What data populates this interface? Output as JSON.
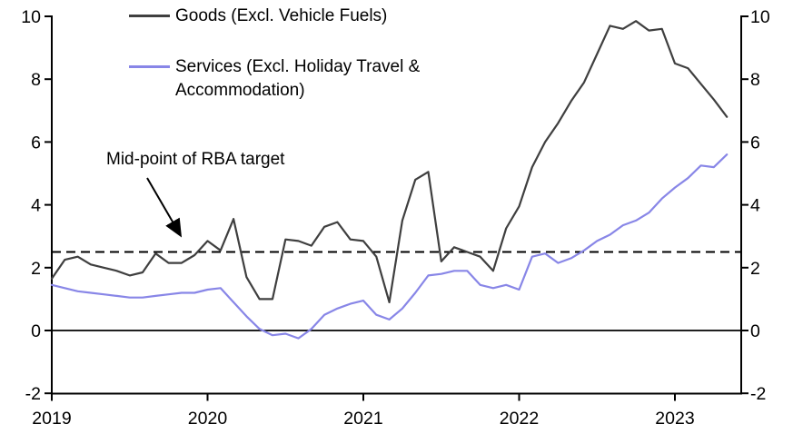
{
  "chart_data": {
    "type": "line",
    "title": "",
    "xlabel": "",
    "ylabel": "",
    "x_unit": "month",
    "x_start": "2019-01",
    "x_end": "2023-05",
    "x_tick_labels": [
      "2019",
      "2020",
      "2021",
      "2022",
      "2023"
    ],
    "x_tick_month_index": [
      0,
      12,
      24,
      36,
      48
    ],
    "y_ticks": [
      -2,
      0,
      2,
      4,
      6,
      8,
      10
    ],
    "ylim": [
      -2,
      10
    ],
    "y_axis_sides": "both",
    "grid": false,
    "background_color": "#ffffff",
    "axis_color": "#000000",
    "zero_line": {
      "value": 0,
      "color": "#000000",
      "style": "solid"
    },
    "target_line": {
      "value": 2.5,
      "color": "#000000",
      "style": "dashed"
    },
    "annotation": {
      "text": "Mid-point of RBA target",
      "points_to_value": 2.5
    },
    "legend_position": "top-left-inside",
    "series": [
      {
        "name": "Goods (Excl. Vehicle Fuels)",
        "color": "#3f3f3f",
        "values": [
          1.65,
          2.25,
          2.35,
          2.1,
          2.0,
          1.9,
          1.75,
          1.85,
          2.45,
          2.15,
          2.15,
          2.4,
          2.85,
          2.55,
          3.55,
          1.7,
          1.0,
          1.0,
          2.9,
          2.85,
          2.7,
          3.3,
          3.45,
          2.9,
          2.85,
          2.35,
          0.9,
          3.5,
          4.8,
          5.05,
          2.2,
          2.65,
          2.5,
          2.35,
          1.9,
          3.25,
          3.95,
          5.2,
          6.0,
          6.6,
          7.3,
          7.9,
          8.8,
          9.7,
          9.6,
          9.85,
          9.55,
          9.6,
          8.5,
          8.35,
          7.85,
          7.35,
          6.8
        ]
      },
      {
        "name": "Services (Excl. Holiday Travel & Accommodation)",
        "color": "#8886e7",
        "values": [
          1.45,
          1.35,
          1.25,
          1.2,
          1.15,
          1.1,
          1.05,
          1.05,
          1.1,
          1.15,
          1.2,
          1.2,
          1.3,
          1.35,
          0.9,
          0.45,
          0.05,
          -0.15,
          -0.1,
          -0.25,
          0.05,
          0.5,
          0.7,
          0.85,
          0.95,
          0.5,
          0.35,
          0.7,
          1.2,
          1.75,
          1.8,
          1.9,
          1.9,
          1.45,
          1.35,
          1.45,
          1.3,
          2.35,
          2.45,
          2.15,
          2.3,
          2.55,
          2.85,
          3.05,
          3.35,
          3.5,
          3.75,
          4.2,
          4.55,
          4.85,
          5.25,
          5.2,
          5.6
        ]
      }
    ]
  }
}
